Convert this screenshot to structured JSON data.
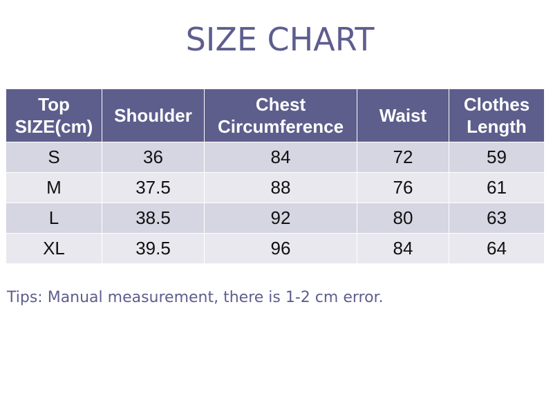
{
  "title": "SIZE CHART",
  "table": {
    "headers": [
      [
        "Top",
        "SIZE(cm)"
      ],
      [
        "Shoulder"
      ],
      [
        "Chest",
        "Circumference"
      ],
      [
        "Waist"
      ],
      [
        "Clothes",
        "Length"
      ]
    ],
    "rows": [
      [
        "S",
        "36",
        "84",
        "72",
        "59"
      ],
      [
        "M",
        "37.5",
        "88",
        "76",
        "61"
      ],
      [
        "L",
        "38.5",
        "92",
        "80",
        "63"
      ],
      [
        "XL",
        "39.5",
        "96",
        "84",
        "64"
      ]
    ]
  },
  "tips": "Tips: Manual measurement, there is 1-2 cm error.",
  "colors": {
    "accent": "#5d5e8e",
    "header_bg": "#5d5e8c",
    "row_dark": "#d6d5e2",
    "row_light": "#e9e8ef"
  }
}
